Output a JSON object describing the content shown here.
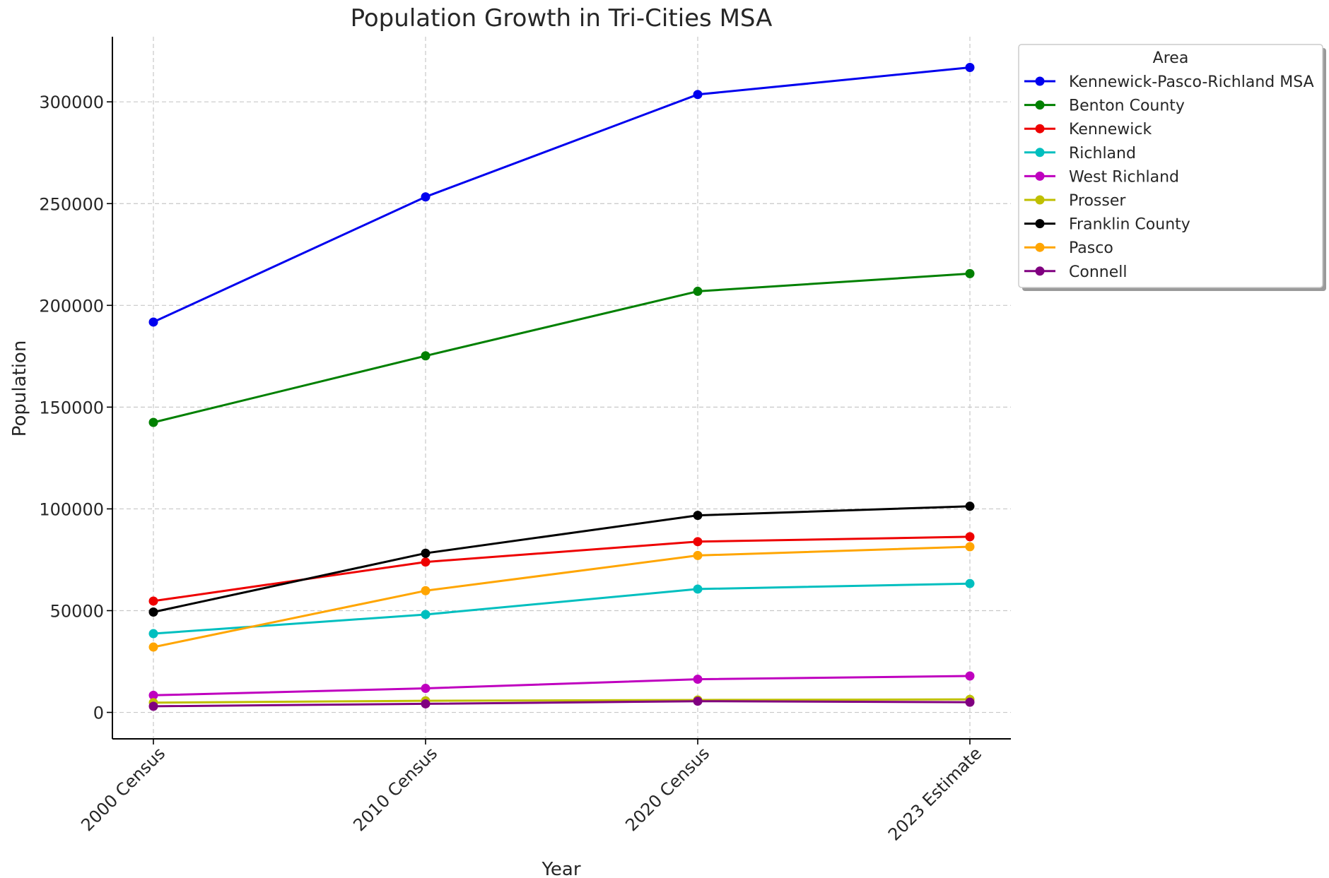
{
  "chart_data": {
    "type": "line",
    "title": "Population Growth in Tri-Cities MSA",
    "xlabel": "Year",
    "ylabel": "Population",
    "categories": [
      "2000 Census",
      "2010 Census",
      "2020 Census",
      "2023 Estimate"
    ],
    "ylim": [
      -13000,
      332000
    ],
    "yticks": [
      0,
      50000,
      100000,
      150000,
      200000,
      250000,
      300000
    ],
    "ytick_labels": [
      "0",
      "50000",
      "100000",
      "150000",
      "200000",
      "250000",
      "300000"
    ],
    "grid": true,
    "legend": {
      "title": "Area",
      "placement": "upper-right-outside"
    },
    "series": [
      {
        "name": "Kennewick-Pasco-Richland MSA",
        "color": "#0000ee",
        "values": [
          191800,
          253300,
          303600,
          316900
        ]
      },
      {
        "name": "Benton County",
        "color": "#008000",
        "values": [
          142500,
          175200,
          206900,
          215600
        ]
      },
      {
        "name": "Kennewick",
        "color": "#ee0000",
        "values": [
          54700,
          73900,
          83900,
          86300
        ]
      },
      {
        "name": "Richland",
        "color": "#00bfbf",
        "values": [
          38700,
          48100,
          60600,
          63300
        ]
      },
      {
        "name": "West Richland",
        "color": "#bf00bf",
        "values": [
          8400,
          11800,
          16300,
          17900
        ]
      },
      {
        "name": "Prosser",
        "color": "#bfbf00",
        "values": [
          4800,
          5700,
          6100,
          6400
        ]
      },
      {
        "name": "Franklin County",
        "color": "#000000",
        "values": [
          49300,
          78200,
          96800,
          101300
        ]
      },
      {
        "name": "Pasco",
        "color": "#ffa500",
        "values": [
          32100,
          59800,
          77100,
          81400
        ]
      },
      {
        "name": "Connell",
        "color": "#800080",
        "values": [
          3000,
          4200,
          5500,
          5000
        ]
      }
    ]
  }
}
